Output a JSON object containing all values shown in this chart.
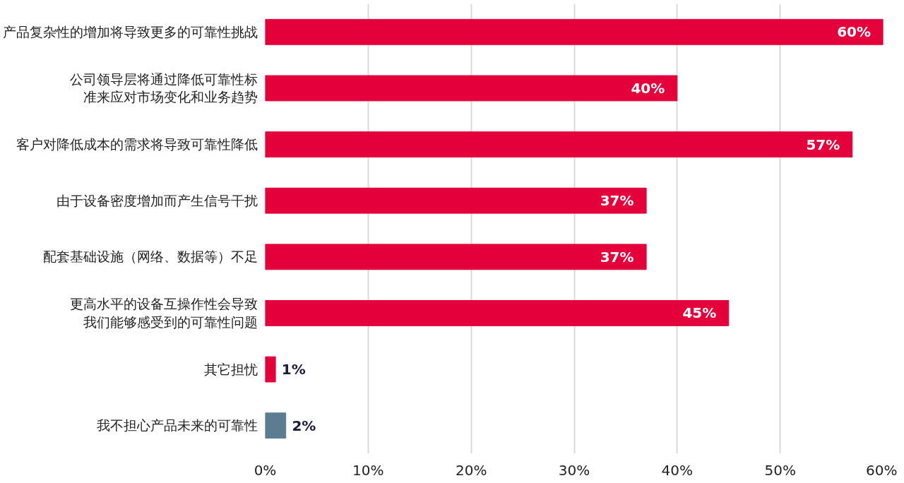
{
  "chart_data": {
    "type": "bar",
    "orientation": "horizontal",
    "categories": [
      "产品复杂性的增加将导致更多的可靠性挑战",
      "公司领导层将通过降低可靠性标准来应对市场变化和业务趋势",
      "客户对降低成本的需求将导致可靠性降低",
      "由于设备密度增加而产生信号干扰",
      "配套基础设施（网络、数据等）不足",
      "更高水平的设备互操作性会导致我们能够感受到的可靠性问题",
      "其它担忧",
      "我不担心产品未来的可靠性"
    ],
    "values": [
      60,
      40,
      57,
      37,
      37,
      45,
      1,
      2
    ],
    "colors": [
      "#e4003a",
      "#e4003a",
      "#e4003a",
      "#e4003a",
      "#e4003a",
      "#e4003a",
      "#e4003a",
      "#5c7d91"
    ],
    "value_labels": [
      "60%",
      "40%",
      "57%",
      "37%",
      "37%",
      "45%",
      "1%",
      "2%"
    ],
    "xlim": [
      0,
      60
    ],
    "xticks": [
      {
        "value": 0,
        "label": "0%"
      },
      {
        "value": 10,
        "label": "10%"
      },
      {
        "value": 20,
        "label": "20%"
      },
      {
        "value": 30,
        "label": "30%"
      },
      {
        "value": 40,
        "label": "40%"
      },
      {
        "value": 50,
        "label": "50%"
      },
      {
        "value": 60,
        "label": "60%"
      }
    ],
    "grid": "x"
  }
}
